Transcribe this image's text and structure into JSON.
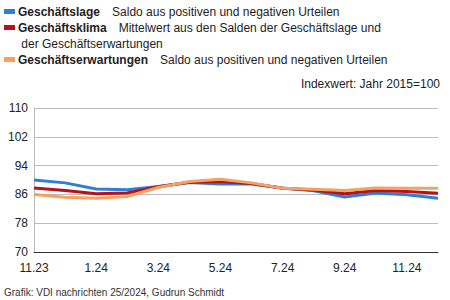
{
  "chart_data": {
    "type": "line",
    "subtitle": "Indexwert: Jahr 2015=100",
    "source": "Grafik: VDI nachrichten 25/2024, Gudrun Schmidt",
    "categories": [
      "11.23",
      null,
      "1.24",
      null,
      "3.24",
      null,
      "5.24",
      null,
      "7.24",
      null,
      "9.24",
      null,
      "11.24",
      null
    ],
    "series": [
      {
        "name": "Geschäftslage",
        "description": "Saldo aus positiven und negativen Urteilen",
        "color": "#2f7fd6",
        "values": [
          90.0,
          89.2,
          87.5,
          87.3,
          88.2,
          89.3,
          88.9,
          88.9,
          87.8,
          87.0,
          85.3,
          86.4,
          85.9,
          84.9
        ]
      },
      {
        "name": "Geschäftsklima",
        "description": "Mittelwert aus den Salden der Geschäftslage und der Geschäftserwartungen",
        "color": "#b5121b",
        "values": [
          87.8,
          87.1,
          86.2,
          86.4,
          88.1,
          89.4,
          89.6,
          89.0,
          87.7,
          87.2,
          86.2,
          87.1,
          86.8,
          86.3
        ]
      },
      {
        "name": "Geschäftserwartungen",
        "description": "Saldo aus positiven und negativen Urteilen",
        "color": "#f4a261",
        "values": [
          86.0,
          85.2,
          84.9,
          85.4,
          87.9,
          89.6,
          90.2,
          89.2,
          87.7,
          87.4,
          87.1,
          87.8,
          87.7,
          87.7
        ]
      }
    ],
    "ylim": [
      70,
      110
    ],
    "yticks": [
      70,
      78,
      86,
      94,
      102,
      110
    ],
    "grid": true,
    "legend": "top"
  }
}
